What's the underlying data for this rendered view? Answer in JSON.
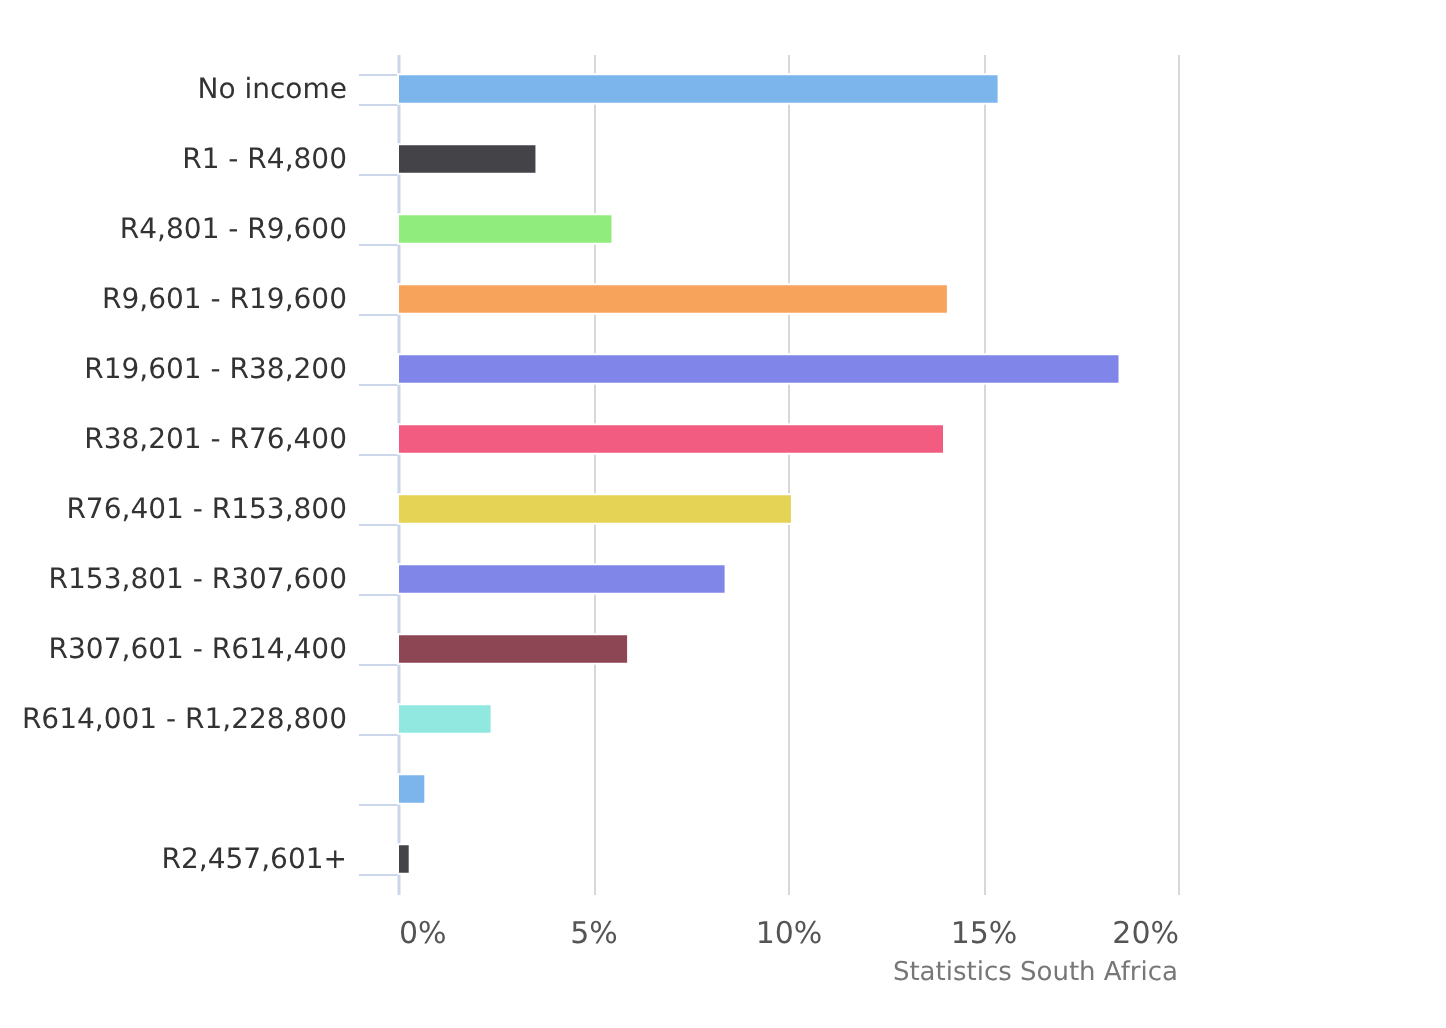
{
  "chart_data": {
    "type": "bar",
    "orientation": "horizontal",
    "categories": [
      "No income",
      "R1 - R4,800",
      "R4,801 - R9,600",
      "R9,601 - R19,600",
      "R19,601 - R38,200",
      "R38,201 - R76,400",
      "R76,401 - R153,800",
      "R153,801 - R307,600",
      "R307,601 - R614,400",
      "R614,001 - R1,228,800",
      null,
      "R2,457,601+"
    ],
    "values": [
      15.4,
      3.55,
      5.5,
      14.1,
      18.5,
      14.0,
      10.1,
      8.4,
      5.9,
      2.4,
      0.7,
      0.3
    ],
    "colors": [
      "#7cb5ec",
      "#434348",
      "#90ed7d",
      "#f7a35c",
      "#8085e9",
      "#f15c80",
      "#e4d354",
      "#8085e8",
      "#8d4653",
      "#91e8e1",
      "#7cb5ec",
      "#434348"
    ],
    "xlim": [
      0,
      20
    ],
    "xticks": [
      {
        "value": 0,
        "label": "0%"
      },
      {
        "value": 5,
        "label": "5%"
      },
      {
        "value": 10,
        "label": "10%"
      },
      {
        "value": 15,
        "label": "15%"
      },
      {
        "value": 20,
        "label": "20%"
      }
    ],
    "grid": "x",
    "annotations": [
      "Statistics South Africa"
    ]
  }
}
